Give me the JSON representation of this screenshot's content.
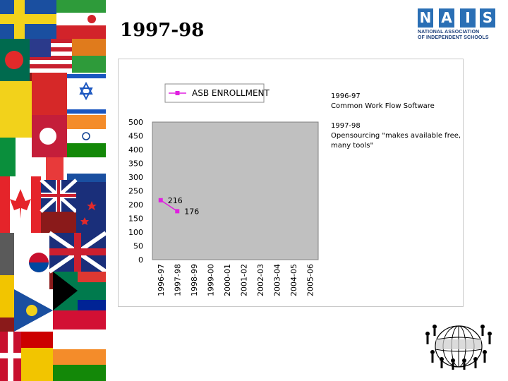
{
  "slide": {
    "title": "1997-98"
  },
  "logo": {
    "letters": [
      "N",
      "A",
      "I",
      "S"
    ],
    "line1": "NATIONAL ASSOCIATION",
    "line2": "OF INDEPENDENT SCHOOLS",
    "brand_color": "#2a6fb5"
  },
  "notes": [
    {
      "year": "1996-97",
      "text": "Common Work Flow Software"
    },
    {
      "year": "1997-98",
      "text": "Opensourcing \"makes available free, many tools\""
    }
  ],
  "chart_data": {
    "type": "line",
    "categories": [
      "1996-97",
      "1997-98",
      "1998-99",
      "1999-00",
      "2000-01",
      "2001-02",
      "2002-03",
      "2003-04",
      "2004-05",
      "2005-06"
    ],
    "series": [
      {
        "name": "ASB ENROLLMENT",
        "values": [
          216,
          176,
          null,
          null,
          null,
          null,
          null,
          null,
          null,
          null
        ],
        "color": "#e020e0"
      }
    ],
    "ylim": [
      0,
      500
    ],
    "yticks": [
      0,
      50,
      100,
      150,
      200,
      250,
      300,
      350,
      400,
      450,
      500
    ],
    "data_labels": [
      "216",
      "176"
    ],
    "grid": false,
    "plot_background": "#c0c0c0",
    "legend_position": "top",
    "title": "",
    "xlabel": "",
    "ylabel": ""
  }
}
